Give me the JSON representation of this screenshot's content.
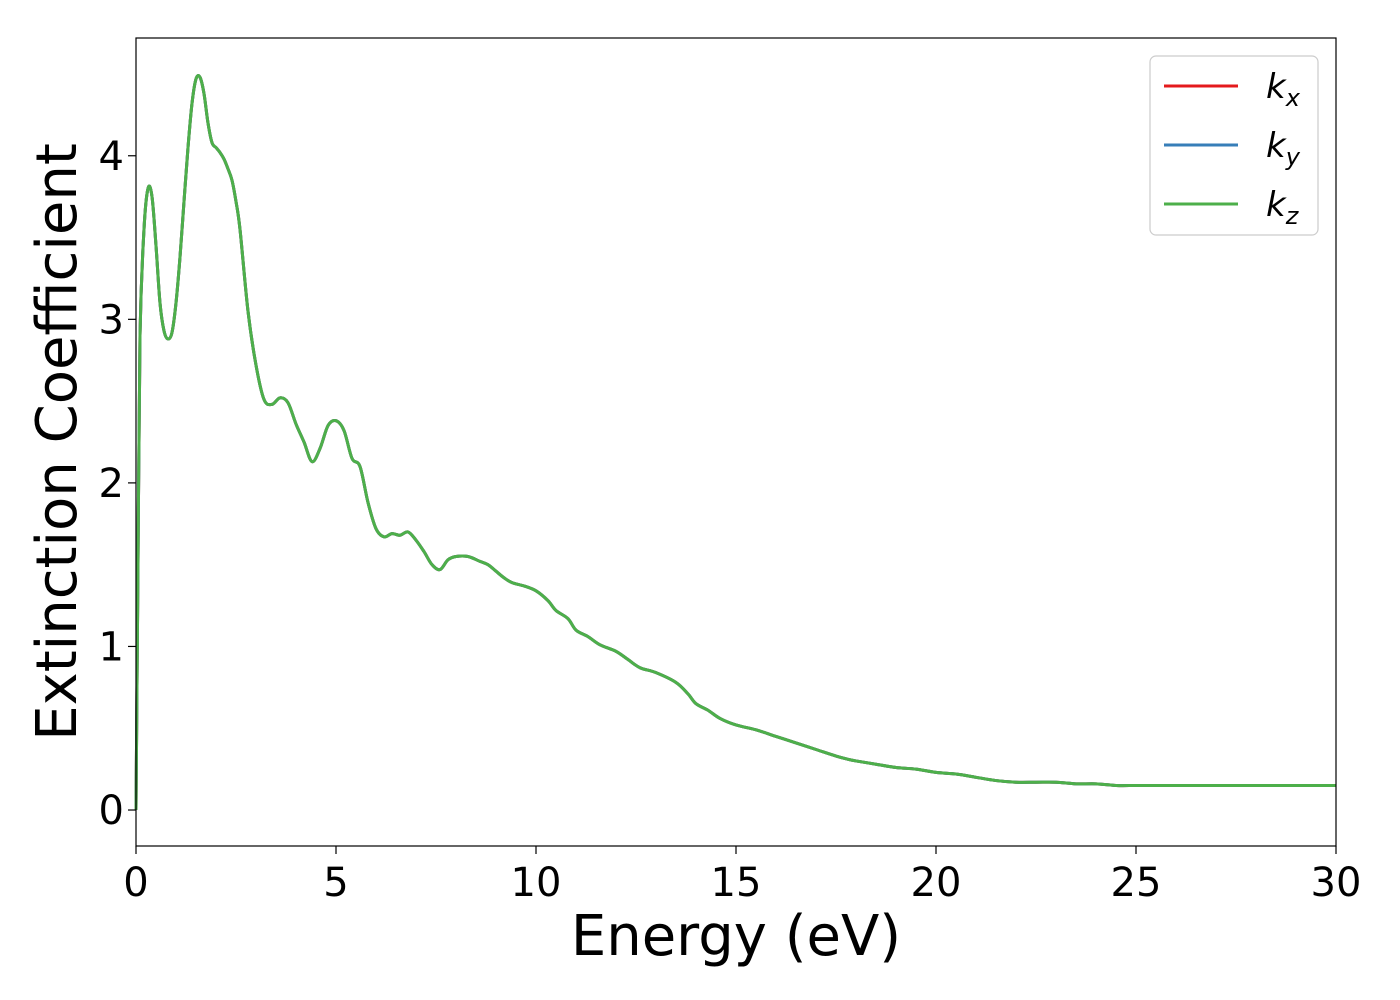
{
  "chart_data": {
    "type": "line",
    "title": "",
    "xlabel": "Energy (eV)",
    "ylabel": "Extinction Coefficient",
    "xlim": [
      0,
      30
    ],
    "ylim": [
      -0.22,
      4.72
    ],
    "xticks": [
      0,
      5,
      10,
      15,
      20,
      25,
      30
    ],
    "yticks": [
      0,
      1,
      2,
      3,
      4
    ],
    "grid": false,
    "legend_position": "top-right",
    "series": [
      {
        "name": "k",
        "subscript": "x",
        "color": "#e41a1c"
      },
      {
        "name": "k",
        "subscript": "y",
        "color": "#377eb8"
      },
      {
        "name": "k",
        "subscript": "z",
        "color": "#4daf4a"
      }
    ],
    "x": [
      0,
      0.05,
      0.1,
      0.2,
      0.3,
      0.4,
      0.5,
      0.6,
      0.7,
      0.8,
      0.9,
      1.0,
      1.1,
      1.2,
      1.3,
      1.4,
      1.5,
      1.6,
      1.7,
      1.8,
      1.9,
      2.0,
      2.1,
      2.2,
      2.3,
      2.4,
      2.5,
      2.6,
      2.8,
      3.0,
      3.2,
      3.4,
      3.6,
      3.8,
      4.0,
      4.2,
      4.4,
      4.6,
      4.8,
      5.0,
      5.2,
      5.4,
      5.6,
      5.8,
      6.0,
      6.2,
      6.4,
      6.6,
      6.8,
      7.0,
      7.2,
      7.4,
      7.6,
      7.8,
      8.0,
      8.3,
      8.6,
      8.8,
      9.0,
      9.2,
      9.4,
      9.7,
      10.0,
      10.3,
      10.5,
      10.8,
      11.0,
      11.3,
      11.6,
      12.0,
      12.3,
      12.6,
      13.0,
      13.5,
      13.8,
      14.0,
      14.3,
      14.6,
      15.0,
      15.5,
      16.0,
      16.5,
      17.0,
      17.5,
      17.8,
      18.0,
      18.5,
      19.0,
      19.5,
      20.0,
      20.5,
      21.0,
      21.5,
      22.0,
      22.5,
      23.0,
      23.5,
      24.0,
      24.5,
      25.0,
      25.5,
      26.0,
      26.5,
      27.0,
      27.5,
      28.0,
      28.5,
      29.0,
      29.5,
      30.0
    ],
    "values": [
      0.0,
      1.5,
      2.9,
      3.55,
      3.8,
      3.75,
      3.45,
      3.1,
      2.93,
      2.88,
      2.92,
      3.1,
      3.38,
      3.72,
      4.05,
      4.32,
      4.47,
      4.48,
      4.38,
      4.2,
      4.08,
      4.05,
      4.02,
      3.98,
      3.92,
      3.85,
      3.72,
      3.55,
      3.05,
      2.72,
      2.51,
      2.48,
      2.52,
      2.49,
      2.36,
      2.25,
      2.13,
      2.21,
      2.35,
      2.38,
      2.32,
      2.15,
      2.1,
      1.88,
      1.72,
      1.67,
      1.69,
      1.68,
      1.7,
      1.65,
      1.58,
      1.5,
      1.47,
      1.53,
      1.55,
      1.55,
      1.52,
      1.5,
      1.46,
      1.42,
      1.39,
      1.37,
      1.34,
      1.28,
      1.22,
      1.17,
      1.1,
      1.06,
      1.01,
      0.97,
      0.92,
      0.87,
      0.84,
      0.78,
      0.71,
      0.65,
      0.61,
      0.56,
      0.52,
      0.49,
      0.45,
      0.41,
      0.37,
      0.33,
      0.31,
      0.3,
      0.28,
      0.26,
      0.25,
      0.23,
      0.22,
      0.2,
      0.18,
      0.17,
      0.17,
      0.17,
      0.16,
      0.16,
      0.15,
      0.15,
      0.15,
      0.15,
      0.15,
      0.15,
      0.15,
      0.15,
      0.15,
      0.15,
      0.15,
      0.15
    ]
  }
}
